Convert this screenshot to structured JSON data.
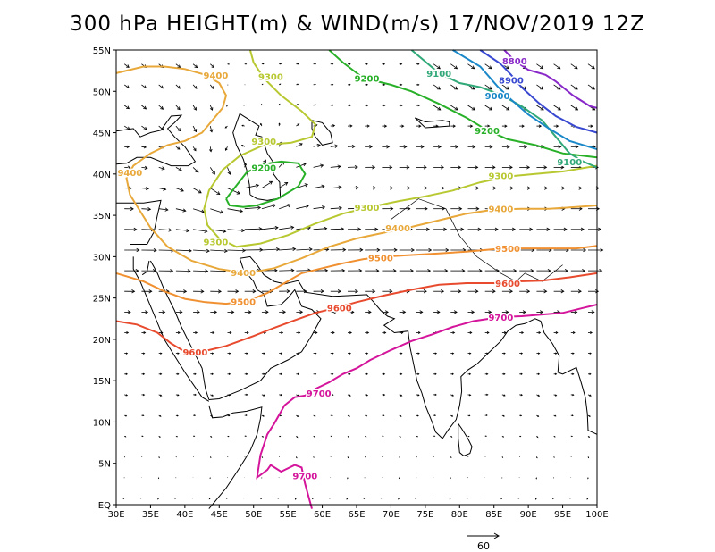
{
  "title": "300 hPa HEIGHT(m) & WIND(m/s) 17/NOV/2019 12Z",
  "lon_ticks": [
    "30E",
    "35E",
    "40E",
    "45E",
    "50E",
    "55E",
    "60E",
    "65E",
    "70E",
    "75E",
    "80E",
    "85E",
    "90E",
    "95E",
    "100E"
  ],
  "lat_ticks": [
    "EQ",
    "5N",
    "10N",
    "15N",
    "20N",
    "25N",
    "30N",
    "35N",
    "40N",
    "45N",
    "50N",
    "55N"
  ],
  "wind_reference": {
    "value": "60",
    "units": "m/s"
  },
  "domain": {
    "lon_range": [
      30,
      100
    ],
    "lat_range": [
      0,
      55
    ]
  },
  "contours": [
    {
      "value": "9700",
      "color": "#d4159b",
      "labels": [
        [
          57.5,
          3.5
        ],
        [
          59.5,
          13.5
        ],
        [
          86,
          22.7
        ]
      ]
    },
    {
      "value": "9600",
      "color": "#e84a2e",
      "labels": [
        [
          41.5,
          18.5
        ],
        [
          62.5,
          23.8
        ],
        [
          87,
          26.8
        ]
      ]
    },
    {
      "value": "9500",
      "color": "#f09030",
      "labels": [
        [
          48.5,
          24.6
        ],
        [
          68.5,
          29.9
        ],
        [
          87,
          31.0
        ]
      ]
    },
    {
      "value": "9400",
      "color": "#e8a83a",
      "labels": [
        [
          32,
          40.2
        ],
        [
          44.5,
          52.0
        ],
        [
          48.5,
          28.1
        ],
        [
          71,
          33.5
        ],
        [
          86,
          35.8
        ]
      ]
    },
    {
      "value": "9300",
      "color": "#b8c830",
      "labels": [
        [
          52.5,
          51.8
        ],
        [
          51.5,
          44.0
        ],
        [
          44.5,
          31.8
        ],
        [
          66.5,
          36.0
        ],
        [
          86,
          39.8
        ]
      ]
    },
    {
      "value": "9200",
      "color": "#28b028",
      "labels": [
        [
          51.5,
          40.8
        ],
        [
          66.5,
          51.6
        ],
        [
          84,
          45.3
        ]
      ]
    },
    {
      "value": "9100",
      "color": "#30a878",
      "labels": [
        [
          77,
          52.2
        ],
        [
          96,
          41.5
        ]
      ]
    },
    {
      "value": "9000",
      "color": "#1a88c8",
      "labels": [
        [
          85.5,
          49.5
        ]
      ]
    },
    {
      "value": "8900",
      "color": "#3848d0",
      "labels": [
        [
          87.5,
          51.4
        ]
      ]
    },
    {
      "value": "8800",
      "color": "#8828c8",
      "labels": [
        [
          88,
          53.7
        ]
      ]
    }
  ]
}
